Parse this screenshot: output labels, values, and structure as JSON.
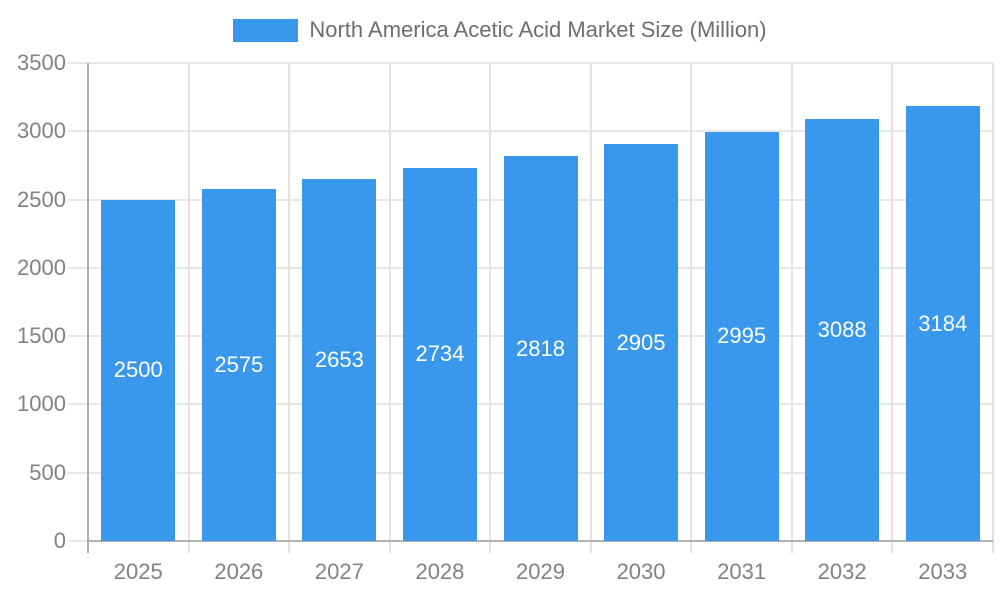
{
  "page": {
    "background": "#ffffff"
  },
  "legend": {
    "label": "North America Acetic Acid Market Size (Million)",
    "swatch_color": "#3998EC",
    "position": "top-center"
  },
  "chart_data": {
    "type": "bar",
    "title": "North America Acetic Acid Market Size (Million)",
    "categories": [
      "2025",
      "2026",
      "2027",
      "2028",
      "2029",
      "2030",
      "2031",
      "2032",
      "2033"
    ],
    "series": [
      {
        "name": "North America Acetic Acid Market Size (Million)",
        "values": [
          2500,
          2575,
          2653,
          2734,
          2818,
          2905,
          2995,
          3088,
          3184
        ],
        "color": "#3998EC"
      }
    ],
    "value_labels": {
      "visible": true,
      "position": "inside-center",
      "color": "#ffffff"
    },
    "xlabel": "",
    "ylabel": "",
    "ylim": [
      0,
      3500
    ],
    "ytick_step": 500,
    "yticks": [
      0,
      500,
      1000,
      1500,
      2000,
      2500,
      3000,
      3500
    ],
    "grid": true,
    "legend_position": "top",
    "colors": {
      "bar": "#3998EC",
      "grid": "#e7e7e7",
      "axis": "#b1b1b1",
      "tick_label": "#828282",
      "title_text": "#6e6e6e",
      "bar_label": "#ffffff"
    }
  }
}
